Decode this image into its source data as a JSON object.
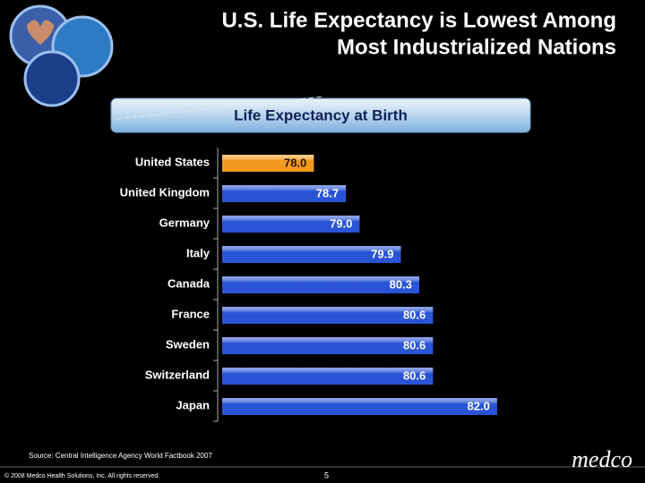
{
  "chart_data": {
    "type": "hbar",
    "title": [
      "U.S. Life Expectancy is Lowest Among",
      "Most Industrialized Nations"
    ],
    "subtitle": "Life Expectancy at Birth",
    "categories": [
      "United States",
      "United Kingdom",
      "Germany",
      "Italy",
      "Canada",
      "France",
      "Sweden",
      "Switzerland",
      "Japan"
    ],
    "values": [
      78.0,
      78.7,
      79.0,
      79.9,
      80.3,
      80.6,
      80.6,
      80.6,
      82.0
    ],
    "value_labels": [
      "78.0",
      "78.7",
      "79.0",
      "79.9",
      "80.3",
      "80.6",
      "80.6",
      "80.6",
      "82.0"
    ],
    "colors": [
      "#f39a1e",
      "#2a54d6",
      "#2a54d6",
      "#2a54d6",
      "#2a54d6",
      "#2a54d6",
      "#2a54d6",
      "#2a54d6",
      "#2a54d6"
    ],
    "xlim": [
      76,
      83
    ],
    "source": "Source: Central Intelligence Agency World Factbook 2007"
  },
  "footer": {
    "copyright": "© 2008 Medco Health Solutions, Inc. All rights reserved.",
    "page_number": "5",
    "logo": "medco"
  }
}
